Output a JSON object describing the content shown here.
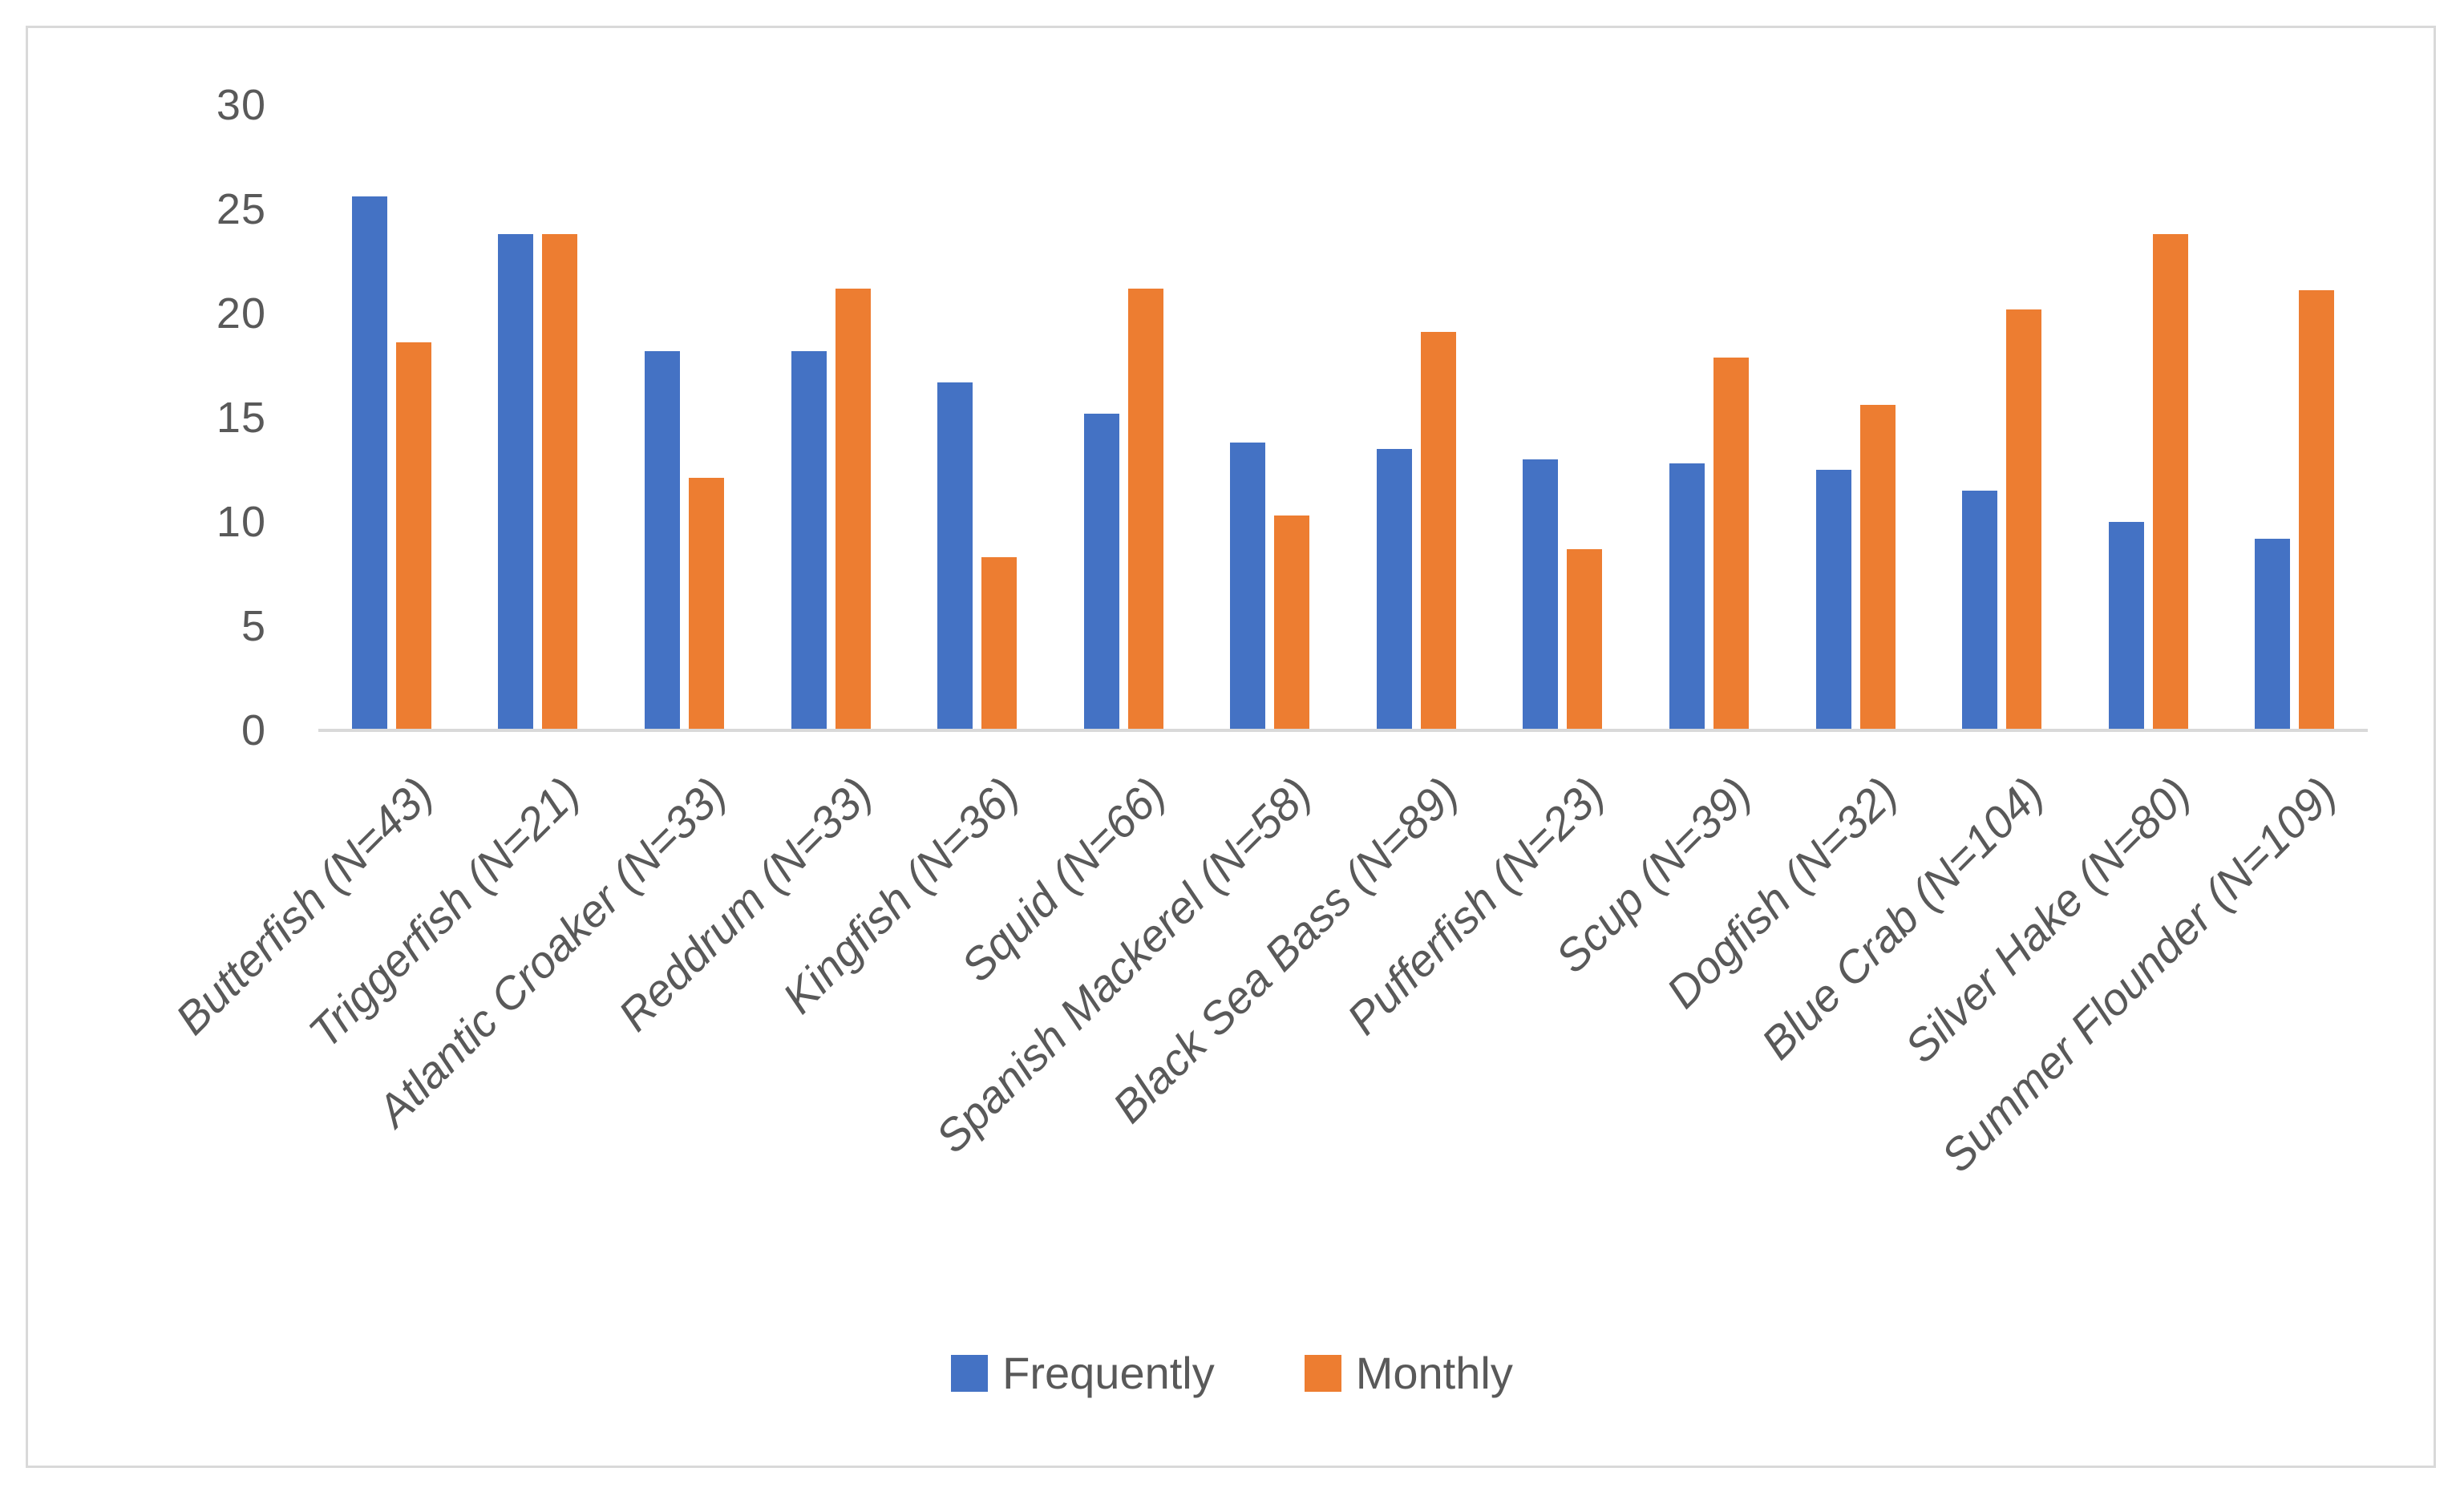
{
  "chart_data": {
    "type": "bar",
    "title": "",
    "categories": [
      "Butterfish (N=43)",
      "Triggerfish (N=21)",
      "Atlantic Croaker (N=33)",
      "Reddrum (N=33)",
      "Kingfish (N=36)",
      "Squid (N=66)",
      "Spanish Mackerel (N=58)",
      "Black Sea Bass (N=89)",
      "Pufferfish (N=23)",
      "Scup (N=39)",
      "Dogfish (N=32)",
      "Blue Crab (N=104)",
      "Silver Hake (N=80)",
      "Summer Flounder (N=109)"
    ],
    "series": [
      {
        "name": "Frequently",
        "color": "#4472C4",
        "values": [
          25.6,
          23.8,
          18.2,
          18.2,
          16.7,
          15.2,
          13.8,
          13.5,
          13.0,
          12.8,
          12.5,
          11.5,
          10.0,
          9.2
        ]
      },
      {
        "name": "Monthly",
        "color": "#ED7D31",
        "values": [
          18.6,
          23.8,
          12.1,
          21.2,
          8.3,
          21.2,
          10.3,
          19.1,
          8.7,
          17.9,
          15.6,
          20.2,
          23.8,
          21.1
        ]
      }
    ],
    "xlabel": "",
    "ylabel": "",
    "ylim": [
      0,
      30
    ],
    "yticks": [
      0,
      5,
      10,
      15,
      20,
      25,
      30
    ],
    "grid": false,
    "legend_position": "bottom",
    "x_tick_rotation_deg": 45
  },
  "legend": {
    "items": [
      {
        "label": "Frequently",
        "color": "#4472C4"
      },
      {
        "label": "Monthly",
        "color": "#ED7D31"
      }
    ]
  },
  "colors": {
    "series_blue": "#4472C4",
    "series_orange": "#ED7D31",
    "tick_text": "#595959",
    "axis_line": "#D9D9D9",
    "frame_border": "#D9D9D9",
    "background": "#FFFFFF"
  }
}
